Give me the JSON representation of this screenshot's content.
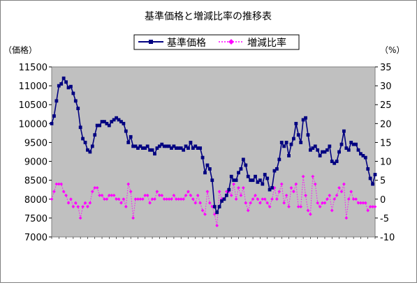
{
  "chart_data": {
    "type": "line",
    "title": "基準価格と増減比率の推移表",
    "y_left_label": "（価格）",
    "y_right_label": "（%）",
    "y_left_ticks": [
      "7000",
      "7500",
      "8000",
      "8500",
      "9000",
      "9500",
      "10000",
      "10500",
      "11000",
      "11500"
    ],
    "y_right_ticks": [
      "-10",
      "-5",
      "0",
      "5",
      "10",
      "15",
      "20",
      "25",
      "30",
      "35"
    ],
    "ylim_left": [
      7000,
      11500
    ],
    "ylim_right": [
      -10,
      35
    ],
    "grid": false,
    "legend_position": "top-center",
    "plot_background": "#c0c0c0",
    "series": [
      {
        "name": "基準価格",
        "axis": "left",
        "color": "#000080",
        "marker": "square",
        "line_style": "solid",
        "values": [
          10000,
          10200,
          10600,
          11000,
          11050,
          11200,
          11100,
          10950,
          10980,
          10800,
          10600,
          10400,
          9900,
          9600,
          9500,
          9300,
          9250,
          9400,
          9700,
          9950,
          9950,
          10050,
          10050,
          10000,
          9950,
          10050,
          10100,
          10150,
          10100,
          10050,
          10000,
          9800,
          9500,
          9650,
          9400,
          9400,
          9350,
          9400,
          9350,
          9350,
          9400,
          9300,
          9300,
          9200,
          9350,
          9400,
          9450,
          9400,
          9400,
          9400,
          9350,
          9400,
          9350,
          9350,
          9350,
          9300,
          9400,
          9350,
          9500,
          9350,
          9400,
          9350,
          9350,
          9100,
          8700,
          8900,
          8800,
          8500,
          7800,
          7650,
          7800,
          7950,
          8000,
          8100,
          8250,
          8600,
          8500,
          8500,
          8700,
          8800,
          9050,
          8900,
          8600,
          8500,
          8500,
          8600,
          8450,
          8500,
          8400,
          8650,
          8550,
          8250,
          8300,
          8750,
          8800,
          9050,
          9500,
          9400,
          9500,
          9150,
          9450,
          9600,
          10000,
          9700,
          9500,
          10100,
          10150,
          9700,
          9300,
          9350,
          9400,
          9300,
          9150,
          9250,
          9250,
          9300,
          9400,
          9000,
          8950,
          9000,
          9250,
          9450,
          9800,
          9350,
          9300,
          9500,
          9450,
          9450,
          9300,
          9200,
          9150,
          9100,
          8800,
          8550,
          8400,
          8650
        ]
      },
      {
        "name": "増減比率",
        "axis": "right",
        "color": "#ff00ff",
        "marker": "diamond",
        "line_style": "dotted",
        "values": [
          0,
          2,
          4,
          4,
          4,
          2,
          1,
          -1,
          0,
          -2,
          -1,
          -2,
          -5,
          -2,
          -1,
          -2,
          -1,
          2,
          3,
          3,
          1,
          1,
          0,
          0,
          1,
          1,
          1,
          0,
          0,
          -1,
          0,
          -2,
          4,
          2,
          -5,
          0,
          0,
          0,
          0,
          1,
          1,
          -1,
          0,
          0,
          2,
          1,
          1,
          0,
          0,
          0,
          0,
          1,
          0,
          0,
          0,
          0,
          1,
          2,
          1,
          0,
          -1,
          1,
          -1,
          -3,
          -4,
          2,
          -1,
          -2,
          -4,
          -7,
          2,
          0,
          0,
          2,
          2,
          1,
          4,
          0,
          3,
          1,
          3,
          -1,
          -3,
          -1,
          0,
          1,
          0,
          -1,
          0,
          0,
          -1,
          -2,
          0,
          3,
          0,
          2,
          4,
          -1,
          1,
          -2,
          3,
          2,
          4,
          -2,
          -2,
          6,
          1,
          -3,
          -4,
          6,
          4,
          -1,
          -2,
          -1,
          -1,
          0,
          1,
          -3,
          0,
          1,
          3,
          2,
          4,
          -5,
          0,
          2,
          0,
          0,
          -1,
          -1,
          -1,
          -1,
          -3,
          -2,
          -2,
          -2
        ]
      }
    ]
  }
}
